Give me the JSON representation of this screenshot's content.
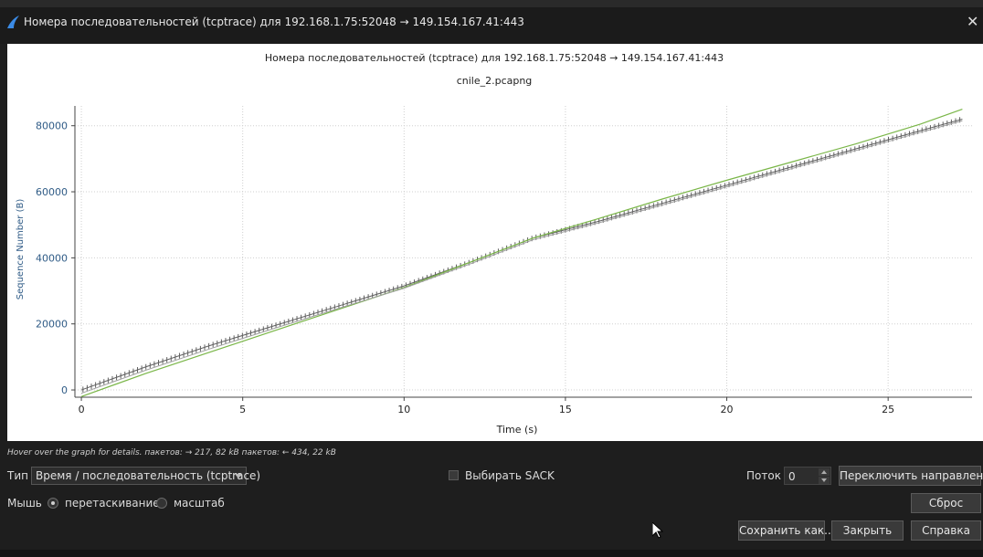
{
  "window": {
    "title": "Номера последовательностей (tcptrace) для 192.168.1.75:52048 → 149.154.167.41:443",
    "icon": "wireshark-fin-icon",
    "close_icon": "close-icon"
  },
  "chart_data": {
    "type": "scatter",
    "title": "Номера последовательностей (tcptrace) для 192.168.1.75:52048 → 149.154.167.41:443",
    "subtitle": "cnile_2.pcapng",
    "xlabel": "Time (s)",
    "ylabel": "Sequence Number (B)",
    "xlim": [
      -0.2,
      27.6
    ],
    "ylim": [
      -2200,
      86000
    ],
    "x_ticks": [
      0,
      5,
      10,
      15,
      20,
      25
    ],
    "y_ticks": [
      0,
      20000,
      40000,
      60000,
      80000
    ],
    "x_tick_labels": [
      "0",
      "5",
      "10",
      "15",
      "20",
      "25"
    ],
    "y_tick_labels": [
      "0",
      "20000",
      "40000",
      "60000",
      "80000"
    ],
    "grid": true,
    "legend": "none",
    "series": [
      {
        "kind": "segments",
        "color": "#606060",
        "x": [
          0,
          2,
          4,
          6,
          8,
          10,
          12,
          14,
          16,
          18,
          20,
          22,
          24,
          26,
          27.3
        ],
        "y": [
          0,
          7000,
          13500,
          19500,
          25500,
          31500,
          38500,
          46000,
          51000,
          56500,
          62000,
          67500,
          73000,
          78500,
          82000
        ]
      },
      {
        "kind": "receive-window",
        "color": "#7ab648",
        "x": [
          0,
          2,
          4,
          6,
          8,
          10,
          12,
          14,
          16,
          18,
          20,
          22,
          24,
          26,
          27.3
        ],
        "y": [
          -2000,
          5000,
          11500,
          18000,
          24500,
          31000,
          38500,
          46000,
          51800,
          57800,
          63500,
          69000,
          74500,
          80500,
          85000
        ]
      },
      {
        "kind": "ack",
        "color": "#a0a0a0",
        "x": [
          0,
          2,
          4,
          6,
          8,
          10,
          12,
          14,
          16,
          18,
          20,
          22,
          24,
          26,
          27.3
        ],
        "y": [
          -1000,
          6000,
          12500,
          18700,
          24800,
          30800,
          38000,
          45500,
          50500,
          56000,
          61500,
          67000,
          72500,
          78000,
          81500
        ]
      }
    ]
  },
  "hint": "Hover over the graph for details. пакетов: → 217, 82 kB пакетов: ← 434, 22 kB",
  "controls": {
    "type_label": "Тип",
    "type_value": "Время / последовательность (tcptrace)",
    "sack_label": "Выбирать SACK",
    "sack_checked": false,
    "stream_label": "Поток",
    "stream_value": "0",
    "switch_direction": "Переключить направление",
    "mouse_label": "Мышь",
    "drag_label": "перетаскивание",
    "zoom_label": "масштаб",
    "mouse_mode": "drag",
    "reset": "Сброс",
    "save_as": "Сохранить как...",
    "close": "Закрыть",
    "help": "Справка"
  },
  "colors": {
    "background": "#1e1e1e",
    "plot_background": "#ffffff",
    "segments": "#606060",
    "window_line": "#7ab648",
    "axis_text": "#2f5b86"
  }
}
